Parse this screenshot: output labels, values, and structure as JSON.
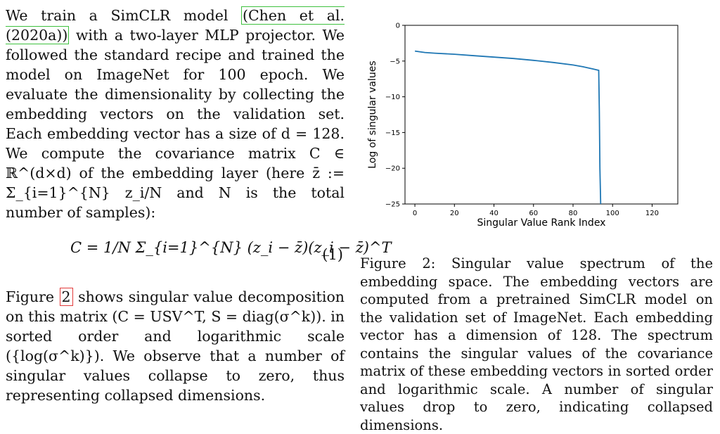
{
  "left_column": {
    "para1_part1": "We train a SimCLR model ",
    "citation_text": "(Chen et al. (2020a))",
    "para1_part2": " with a two-layer MLP projector. We followed the standard recipe and trained the model on ImageNet for 100 epoch. We evaluate the dimensionality by collecting the embedding vectors on the validation set. Each embedding vector has a size of d = 128. We compute the covariance matrix C ∈ ℝ^(d×d) of the embedding layer (here z̄ := Σ_{i=1}^{N} z_i/N and N is the total number of samples):",
    "equation_text": "C = 1/N Σ_{i=1}^{N} (z_i − z̄)(z_i − z̄)^T",
    "equation_number": "(1)",
    "para2_part1": "Figure ",
    "figure_ref": "2",
    "para2_part2": " shows singular value decomposition on this matrix (C = USV^T, S = diag(σ^k)). in sorted order and logarithmic scale ({log(σ^k)}). We observe that a number of singular values collapse to zero, thus representing collapsed dimensions."
  },
  "figure": {
    "caption": "Figure 2: Singular value spectrum of the embedding space. The embedding vectors are computed from a pretrained SimCLR model on the validation set of ImageNet. Each embedding vector has a dimension of 128. The spectrum contains the singular values of the covariance matrix of these embedding vectors in sorted order and logarithmic scale. A number of singular values drop to zero, indicating collapsed dimensions."
  },
  "chart_data": {
    "type": "line",
    "xlabel": "Singular Value Rank Index",
    "ylabel": "Log of singular values",
    "xlim": [
      -5,
      133
    ],
    "ylim": [
      -25,
      0
    ],
    "xticks": [
      0,
      20,
      40,
      60,
      80,
      100,
      120
    ],
    "yticks": [
      0,
      -5,
      -10,
      -15,
      -20,
      -25
    ],
    "ytick_labels": [
      "0",
      "−5",
      "−10",
      "−15",
      "−20",
      "−25"
    ],
    "series": [
      {
        "x": [
          0,
          5,
          10,
          20,
          30,
          40,
          50,
          60,
          70,
          80,
          85,
          90,
          93,
          93.3,
          93.6,
          94
        ],
        "y": [
          -3.6,
          -3.8,
          -3.9,
          -4.05,
          -4.25,
          -4.45,
          -4.65,
          -4.9,
          -5.2,
          -5.55,
          -5.8,
          -6.1,
          -6.3,
          -12,
          -20,
          -25
        ],
        "color": "#1f77b4"
      }
    ],
    "grid": false
  }
}
